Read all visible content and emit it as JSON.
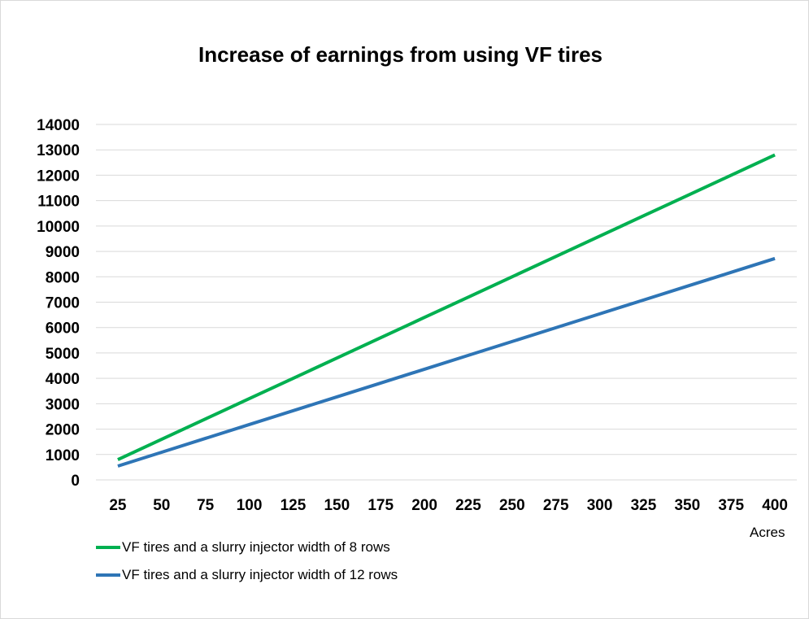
{
  "chart_data": {
    "type": "line",
    "title": "Increase of earnings from using VF tires",
    "xlabel": "Acres",
    "ylabel": "",
    "categories": [
      25,
      50,
      75,
      100,
      125,
      150,
      175,
      200,
      225,
      250,
      275,
      300,
      325,
      350,
      375,
      400
    ],
    "ylim": [
      0,
      14000
    ],
    "yticks": [
      0,
      1000,
      2000,
      3000,
      4000,
      5000,
      6000,
      7000,
      8000,
      9000,
      10000,
      11000,
      12000,
      13000,
      14000
    ],
    "grid": true,
    "legend": "bottom-left",
    "series": [
      {
        "name": "VF tires and a slurry injector width of 8 rows",
        "color": "#00b050",
        "values": [
          800,
          1600,
          2400,
          3200,
          4000,
          4800,
          5600,
          6400,
          7200,
          8000,
          8800,
          9600,
          10400,
          11200,
          12000,
          12800
        ]
      },
      {
        "name": "VF tires and a slurry injector width of 12 rows",
        "color": "#2e75b6",
        "values": [
          545,
          1090,
          1635,
          2180,
          2725,
          3270,
          3815,
          4360,
          4905,
          5450,
          5995,
          6540,
          7085,
          7630,
          8175,
          8720
        ]
      }
    ]
  }
}
